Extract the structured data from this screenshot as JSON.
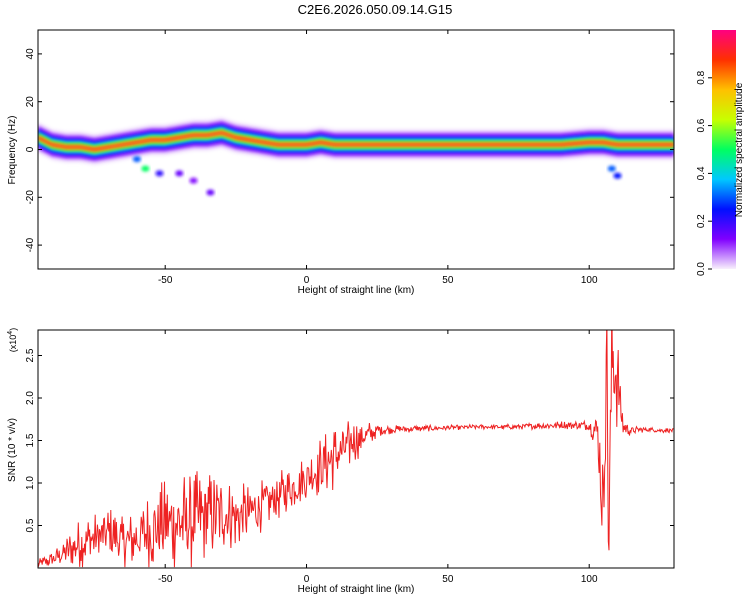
{
  "title": "C2E6.2026.050.09.14.G15",
  "chart_data": [
    {
      "type": "heatmap",
      "xlabel": "Height of straight line (km)",
      "ylabel": "Frequency (Hz)",
      "xlim": [
        -95,
        130
      ],
      "ylim": [
        -50,
        50
      ],
      "xticks": [
        -50,
        0,
        50,
        100
      ],
      "yticks": [
        -40,
        -20,
        0,
        20,
        40
      ],
      "colorbar": {
        "label": "Normalized spectral amplitude",
        "range": [
          0.0,
          1.0
        ],
        "ticks": [
          0.0,
          0.2,
          0.4,
          0.6,
          0.8
        ],
        "tick_labels": [
          "0.0",
          "0.2",
          "0.4",
          "0.6",
          "0.8"
        ],
        "colormap": [
          "#f8f0fc",
          "#8000ff",
          "#0010ff",
          "#00c8ff",
          "#00ff60",
          "#c8ff00",
          "#ffc000",
          "#ff3000",
          "#ff0080"
        ]
      },
      "ridge": [
        {
          "x": -95,
          "y": 5
        },
        {
          "x": -90,
          "y": 2
        },
        {
          "x": -85,
          "y": 1
        },
        {
          "x": -80,
          "y": 1
        },
        {
          "x": -75,
          "y": 0
        },
        {
          "x": -70,
          "y": 1
        },
        {
          "x": -65,
          "y": 2
        },
        {
          "x": -60,
          "y": 3
        },
        {
          "x": -55,
          "y": 4
        },
        {
          "x": -50,
          "y": 4
        },
        {
          "x": -45,
          "y": 5
        },
        {
          "x": -40,
          "y": 6
        },
        {
          "x": -35,
          "y": 6
        },
        {
          "x": -30,
          "y": 7
        },
        {
          "x": -25,
          "y": 5
        },
        {
          "x": -20,
          "y": 4
        },
        {
          "x": -15,
          "y": 3
        },
        {
          "x": -10,
          "y": 2
        },
        {
          "x": -5,
          "y": 2
        },
        {
          "x": 0,
          "y": 2
        },
        {
          "x": 5,
          "y": 3
        },
        {
          "x": 10,
          "y": 2
        },
        {
          "x": 20,
          "y": 2
        },
        {
          "x": 30,
          "y": 2
        },
        {
          "x": 50,
          "y": 2
        },
        {
          "x": 70,
          "y": 2
        },
        {
          "x": 90,
          "y": 2
        },
        {
          "x": 100,
          "y": 3
        },
        {
          "x": 105,
          "y": 3
        },
        {
          "x": 110,
          "y": 2
        },
        {
          "x": 120,
          "y": 2
        },
        {
          "x": 130,
          "y": 2
        }
      ],
      "blobs": [
        {
          "x": -60,
          "y": -4,
          "v": 0.3
        },
        {
          "x": -57,
          "y": -8,
          "v": 0.5
        },
        {
          "x": -52,
          "y": -10,
          "v": 0.2
        },
        {
          "x": -45,
          "y": -10,
          "v": 0.15
        },
        {
          "x": -40,
          "y": -13,
          "v": 0.12
        },
        {
          "x": -34,
          "y": -18,
          "v": 0.15
        },
        {
          "x": 108,
          "y": -8,
          "v": 0.3
        },
        {
          "x": 110,
          "y": -11,
          "v": 0.25
        }
      ]
    },
    {
      "type": "line",
      "xlabel": "Height of straight line (km)",
      "ylabel": "SNR (10 * v/v)",
      "y_multiplier_label": "(x10",
      "y_multiplier_exponent": "4",
      "xlim": [
        -95,
        130
      ],
      "ylim": [
        0,
        2.8
      ],
      "xticks": [
        -50,
        0,
        50,
        100
      ],
      "yticks": [
        0.5,
        1.0,
        1.5,
        2.0,
        2.5
      ],
      "color": "#ee2222",
      "series": [
        {
          "x": [
            -95,
            -90,
            -85,
            -80,
            -75,
            -70,
            -65,
            -60,
            -55,
            -50,
            -45,
            -40,
            -35,
            -30,
            -25,
            -20,
            -15,
            -10,
            -5,
            0,
            5,
            10,
            15,
            20,
            25,
            30,
            40,
            50,
            60,
            70,
            80,
            90,
            100,
            103,
            105,
            106,
            107,
            108,
            110,
            112,
            115,
            120,
            125,
            130
          ],
          "y": [
            0.05,
            0.1,
            0.2,
            0.3,
            0.35,
            0.4,
            0.3,
            0.35,
            0.45,
            0.5,
            0.55,
            0.55,
            0.6,
            0.65,
            0.6,
            0.65,
            0.75,
            0.85,
            0.95,
            1.05,
            1.2,
            1.3,
            1.45,
            1.55,
            1.62,
            1.63,
            1.64,
            1.65,
            1.66,
            1.66,
            1.67,
            1.68,
            1.68,
            1.6,
            0.6,
            2.75,
            0.3,
            2.6,
            2.2,
            1.65,
            1.62,
            1.63,
            1.62,
            1.62
          ],
          "amplitude": [
            0.05,
            0.1,
            0.18,
            0.3,
            0.3,
            0.35,
            0.3,
            0.35,
            0.5,
            0.55,
            0.6,
            0.6,
            0.55,
            0.45,
            0.4,
            0.35,
            0.3,
            0.3,
            0.25,
            0.3,
            0.35,
            0.4,
            0.3,
            0.2,
            0.08,
            0.05,
            0.04,
            0.03,
            0.03,
            0.03,
            0.04,
            0.05,
            0.06,
            0.3,
            0.9,
            1.0,
            1.0,
            1.0,
            0.6,
            0.15,
            0.05,
            0.03,
            0.03,
            0.03
          ]
        }
      ]
    }
  ]
}
